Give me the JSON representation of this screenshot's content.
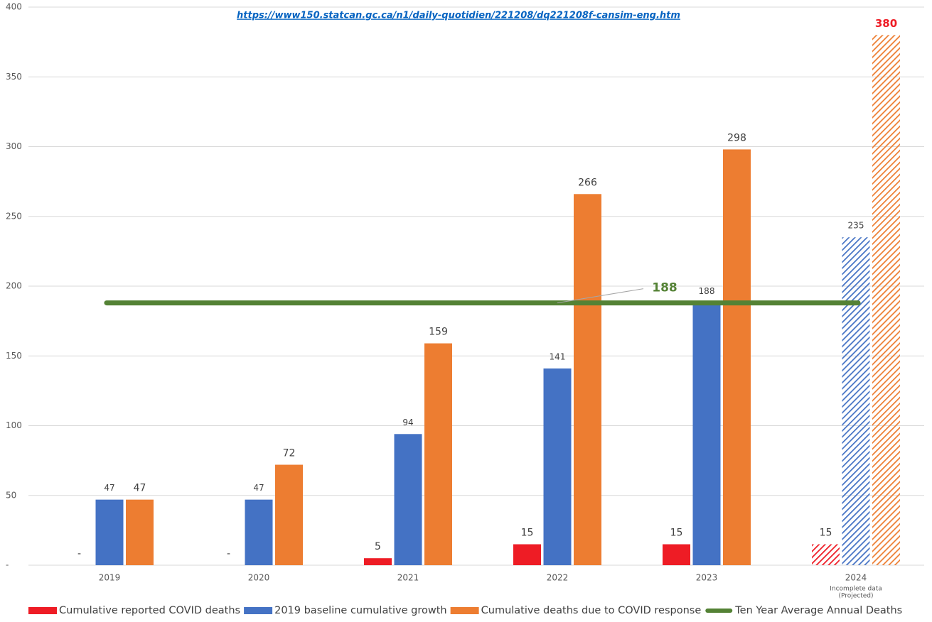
{
  "chart_data": {
    "type": "bar",
    "subtitle": "https://www150.statcan.gc.ca/n1/daily-quotidien/221208/dq221208f-cansim-eng.htm",
    "categories": [
      "2019",
      "2020",
      "2021",
      "2022",
      "2023",
      "2024"
    ],
    "category_notes": [
      null,
      null,
      null,
      null,
      null,
      [
        "Incomplete data",
        "(Projected)"
      ]
    ],
    "hatched": [
      false,
      false,
      false,
      false,
      false,
      true
    ],
    "ylim": [
      0,
      400
    ],
    "yticks": [
      {
        "value": 0,
        "label": "-"
      },
      50,
      100,
      150,
      200,
      250,
      300,
      350,
      400
    ],
    "grid": true,
    "legend": "bottom",
    "series": [
      {
        "name": "Cumulative reported COVID deaths",
        "type": "bar",
        "color": "#ee1c25",
        "values": [
          0,
          0,
          5,
          15,
          15,
          15
        ],
        "value_labels": [
          "-",
          "-",
          "5",
          "15",
          "15",
          "15"
        ]
      },
      {
        "name": "2019 baseline cumulative growth",
        "type": "bar",
        "color": "#4472c4",
        "values": [
          47,
          47,
          94,
          141,
          188,
          235
        ]
      },
      {
        "name": "Cumulative deaths due to COVID response",
        "type": "bar",
        "color": "#ed7d31",
        "values": [
          47,
          72,
          159,
          266,
          298,
          380
        ]
      },
      {
        "name": "Ten Year Average Annual Deaths",
        "type": "line",
        "color": "#548235",
        "values": [
          188,
          188,
          188,
          188,
          188,
          188
        ]
      }
    ]
  }
}
